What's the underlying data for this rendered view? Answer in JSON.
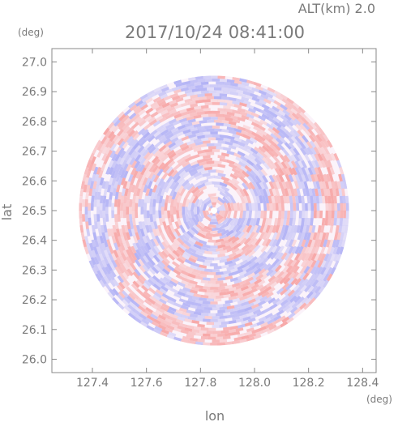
{
  "header": {
    "altitude_label": "ALT(km) 2.0",
    "timestamp": "2017/10/24 08:41:00"
  },
  "chart_data": {
    "type": "heatmap",
    "title": "2017/10/24 08:41:00",
    "subtitle": "ALT(km) 2.0",
    "xlabel": "lon",
    "ylabel": "lat",
    "xunit": "(deg)",
    "yunit": "(deg)",
    "xlim": [
      127.25,
      128.45
    ],
    "ylim": [
      25.955,
      27.045
    ],
    "xticks": [
      "127.4",
      "127.6",
      "127.8",
      "128.0",
      "128.2",
      "128.4"
    ],
    "yticks": [
      "26.0",
      "26.1",
      "26.2",
      "26.3",
      "26.4",
      "26.5",
      "26.6",
      "26.7",
      "26.8",
      "26.9",
      "27.0"
    ],
    "center": {
      "lon": 127.85,
      "lat": 26.5
    },
    "radius_deg": 0.5,
    "grid": false,
    "colors": {
      "positive": "#f7a8a8",
      "negative": "#b3b3f5",
      "frame": "#888888",
      "text": "#777777"
    }
  }
}
